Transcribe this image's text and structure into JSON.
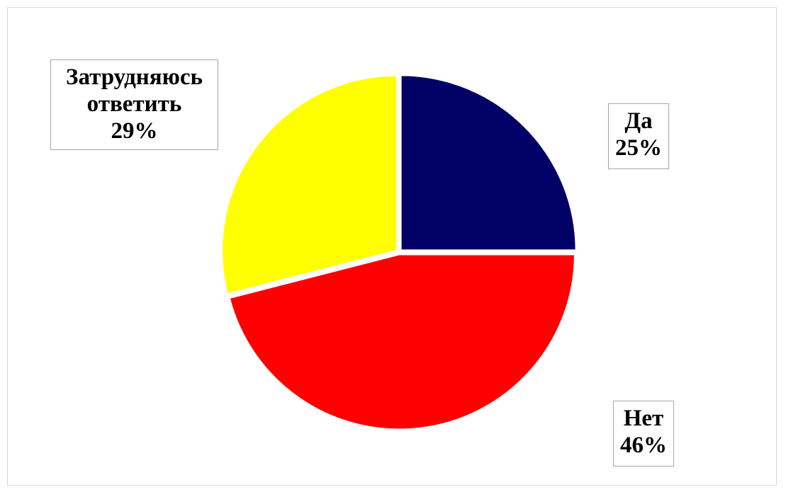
{
  "chart_data": {
    "type": "pie",
    "title": "",
    "slices": [
      {
        "name": "Да",
        "value": 25,
        "label": "25%",
        "color": "#000066"
      },
      {
        "name": "Нет",
        "value": 46,
        "label": "46%",
        "color": "#ff0000"
      },
      {
        "name": "Затрудняюсь ответить",
        "value": 29,
        "label": "29%",
        "color": "#ffff00"
      }
    ],
    "labels": {
      "da": {
        "line1": "Да",
        "line2": "25%"
      },
      "net": {
        "line1": "Нет",
        "line2": "46%"
      },
      "zatr": {
        "line1": "Затрудняюсь",
        "line2": "ответить",
        "line3": "29%"
      }
    },
    "start_angle_deg": 0,
    "direction": "clockwise"
  }
}
